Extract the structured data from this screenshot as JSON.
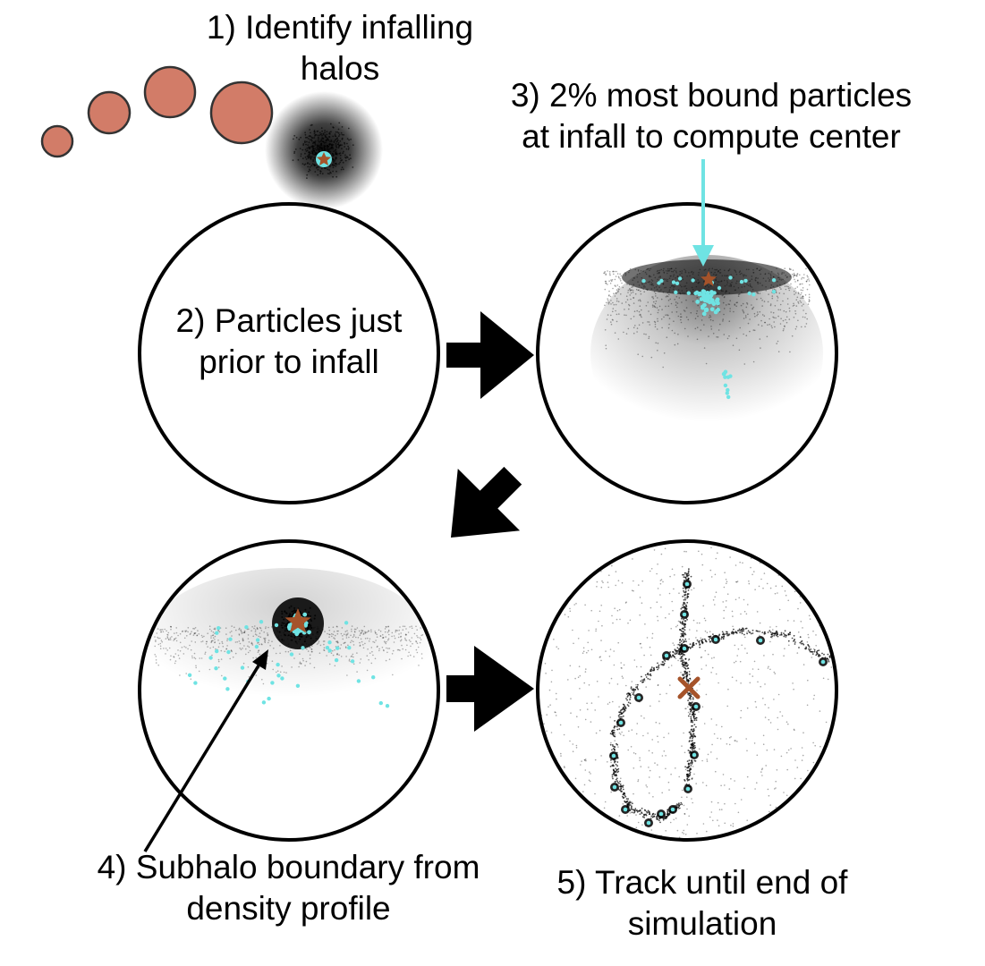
{
  "steps": {
    "step1": [
      "1) Identify infalling",
      "halos"
    ],
    "step2": [
      "2) Particles just",
      "prior to infall"
    ],
    "step3": [
      "3) 2% most bound particles",
      "at infall to compute center"
    ],
    "step4": [
      "4) Subhalo boundary from",
      "density profile"
    ],
    "step5": [
      "5) Track until end of",
      "simulation"
    ]
  },
  "colors": {
    "halo_fill": "#d27c68",
    "particles": "#000000",
    "bound_particles": "#6fe3e3",
    "center_marker": "#a5532a",
    "arrow": "#000000",
    "outline": "#000000"
  },
  "icons": {
    "center": "star-icon",
    "final_center": "x-mark-icon",
    "flow": "block-arrow-icon"
  }
}
